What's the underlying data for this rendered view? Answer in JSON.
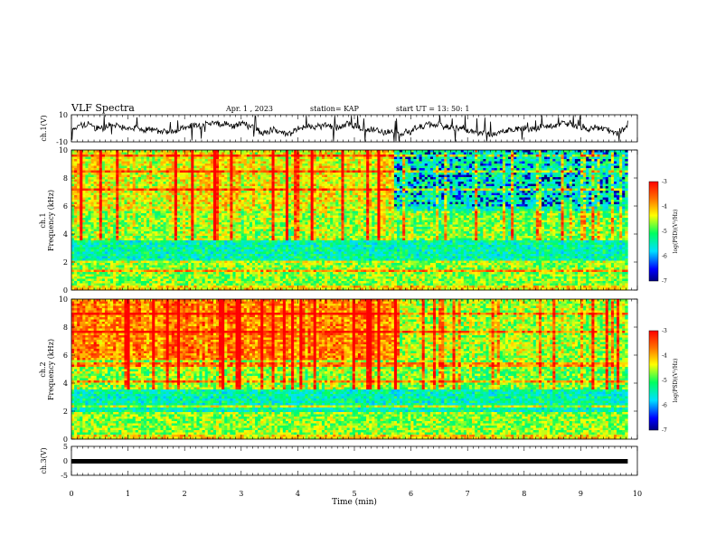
{
  "header": {
    "title": "VLF Spectra",
    "date": "Apr. 1 , 2023",
    "station": "station= KAP",
    "start": "start UT =  13: 50: 1"
  },
  "colorbar": {
    "label": "log(PSD)(V²/Hz)",
    "ticks": [
      "-3",
      "-4",
      "-5",
      "-6",
      "-7"
    ]
  },
  "chart_data": [
    {
      "type": "line",
      "panel": "ch1-waveform",
      "ylabel": "ch.1(V)",
      "ylim": [
        -10,
        10
      ],
      "yticks": [
        "10",
        "-10"
      ],
      "xlim": [
        0,
        10
      ],
      "description_free": true,
      "duration_min": 9.83
    },
    {
      "type": "heatmap",
      "panel": "ch1-spectrogram",
      "ylabel": "ch.1\nFrequency (kHz)",
      "ylim": [
        0,
        10
      ],
      "yticks": [
        "0",
        "2",
        "4",
        "6",
        "8",
        "10"
      ],
      "xlim": [
        0,
        10
      ],
      "zlim": [
        -7,
        -3
      ],
      "duration_min": 9.83,
      "regime_change_min": 5.7
    },
    {
      "type": "heatmap",
      "panel": "ch2-spectrogram",
      "ylabel": "ch.2\nFrequency (kHz)",
      "ylim": [
        0,
        10
      ],
      "yticks": [
        "0",
        "2",
        "4",
        "6",
        "8",
        "10"
      ],
      "xlim": [
        0,
        10
      ],
      "zlim": [
        -7,
        -3
      ],
      "duration_min": 9.83,
      "regime_change_min": 5.8
    },
    {
      "type": "line",
      "panel": "ch3-waveform",
      "ylabel": "ch.3(V)",
      "ylim": [
        -5,
        5
      ],
      "yticks": [
        "5",
        "0",
        "-5"
      ],
      "xlim": [
        0,
        10
      ],
      "value_level": -0.5,
      "duration_min": 9.83
    }
  ],
  "xaxis": {
    "label": "Time (min)",
    "ticks": [
      "0",
      "1",
      "2",
      "3",
      "4",
      "5",
      "6",
      "7",
      "8",
      "9",
      "10"
    ]
  }
}
